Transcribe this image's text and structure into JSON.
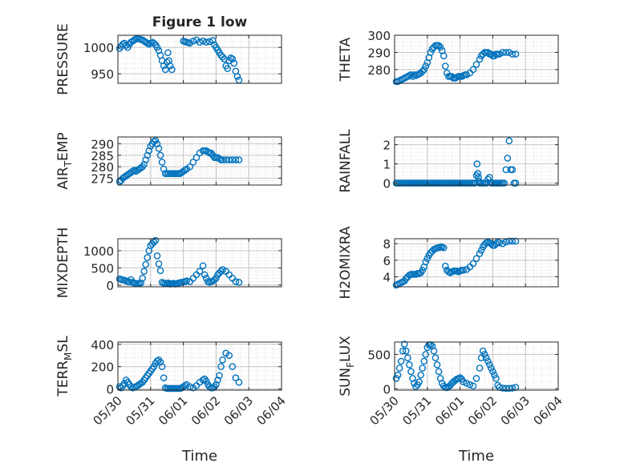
{
  "figure": {
    "title": "Figure 1 low",
    "xlabel": "Time",
    "x_ticks": [
      "05/30",
      "05/31",
      "06/01",
      "06/02",
      "06/03",
      "06/04"
    ],
    "marker": "o",
    "color": "#0072BD",
    "grid": true,
    "minor_grid": true
  },
  "chart_data": [
    {
      "type": "scatter",
      "ylabel": "PRESSURE",
      "ylim": [
        932,
        1023
      ],
      "yticks": [
        950,
        1000
      ],
      "xlim": [
        "05/30",
        "06/04"
      ],
      "x_day": [
        0.05,
        0.1,
        0.15,
        0.2,
        0.25,
        0.3,
        0.35,
        0.4,
        0.45,
        0.5,
        0.55,
        0.6,
        0.65,
        0.7,
        0.75,
        0.8,
        0.85,
        0.9,
        0.95,
        1.0,
        1.05,
        1.1,
        1.15,
        1.2,
        1.25,
        1.3,
        1.35,
        1.4,
        1.45,
        1.5,
        1.53,
        1.56,
        1.6,
        1.65,
        2.0,
        2.05,
        2.1,
        2.15,
        2.2,
        2.3,
        2.4,
        2.5,
        2.6,
        2.7,
        2.8,
        2.9,
        2.95,
        3.0,
        3.05,
        3.1,
        3.15,
        3.2,
        3.25,
        3.3,
        3.35,
        3.4,
        3.45,
        3.5,
        3.55,
        3.6,
        3.65,
        3.7
      ],
      "y": [
        998,
        1002,
        1006,
        1008,
        1004,
        1000,
        1006,
        1010,
        1012,
        1014,
        1016,
        1017,
        1016,
        1015,
        1014,
        1012,
        1010,
        1008,
        1006,
        1008,
        1010,
        1008,
        1005,
        1000,
        994,
        985,
        975,
        965,
        958,
        972,
        990,
        975,
        965,
        958,
        1012,
        1011,
        1010,
        1009,
        1008,
        1012,
        1014,
        1010,
        1012,
        1010,
        1011,
        1013,
        1005,
        1000,
        995,
        990,
        985,
        982,
        978,
        965,
        960,
        975,
        980,
        978,
        970,
        955,
        945,
        938
      ]
    },
    {
      "type": "scatter",
      "ylabel": "THETA",
      "ylim": [
        272,
        300
      ],
      "yticks": [
        280,
        290,
        300
      ],
      "xlim": [
        "05/30",
        "06/04"
      ],
      "x_day": [
        0.05,
        0.1,
        0.15,
        0.2,
        0.25,
        0.3,
        0.35,
        0.4,
        0.45,
        0.5,
        0.55,
        0.6,
        0.65,
        0.7,
        0.75,
        0.8,
        0.85,
        0.9,
        0.95,
        1.0,
        1.05,
        1.1,
        1.15,
        1.2,
        1.25,
        1.3,
        1.35,
        1.4,
        1.45,
        1.5,
        1.55,
        1.6,
        1.65,
        1.7,
        1.75,
        1.8,
        1.85,
        1.9,
        1.95,
        2.0,
        2.05,
        2.1,
        2.15,
        2.2,
        2.3,
        2.4,
        2.5,
        2.6,
        2.65,
        2.7,
        2.75,
        2.8,
        2.85,
        2.9,
        2.95,
        3.0,
        3.05,
        3.1,
        3.15,
        3.2,
        3.3,
        3.4,
        3.5,
        3.6,
        3.7
      ],
      "y": [
        273,
        273,
        273.5,
        274,
        274.5,
        275,
        275.5,
        276,
        276.5,
        277,
        276,
        277,
        276.5,
        277,
        277.5,
        278,
        279,
        280,
        282,
        284,
        287,
        290,
        292,
        293,
        294,
        294,
        294,
        293,
        291,
        288,
        282,
        278,
        276,
        276,
        276,
        275,
        275,
        275.5,
        276,
        276,
        276,
        276.5,
        277,
        277,
        278,
        280,
        283,
        286,
        288,
        289,
        290,
        290,
        290,
        289,
        289,
        288,
        288,
        289,
        289,
        289,
        290,
        290,
        290,
        289,
        289
      ]
    },
    {
      "type": "scatter",
      "ylabel": "AIR_TEMP",
      "ylim": [
        272,
        293
      ],
      "yticks": [
        275,
        280,
        285,
        290
      ],
      "xlim": [
        "05/30",
        "06/04"
      ],
      "x_day": [
        0.05,
        0.1,
        0.15,
        0.2,
        0.25,
        0.3,
        0.35,
        0.4,
        0.45,
        0.5,
        0.55,
        0.6,
        0.65,
        0.7,
        0.75,
        0.8,
        0.85,
        0.9,
        0.95,
        1.0,
        1.05,
        1.1,
        1.15,
        1.2,
        1.25,
        1.3,
        1.35,
        1.4,
        1.45,
        1.5,
        1.55,
        1.6,
        1.65,
        1.7,
        1.75,
        1.8,
        1.85,
        1.9,
        1.95,
        2.0,
        2.05,
        2.1,
        2.2,
        2.3,
        2.4,
        2.5,
        2.6,
        2.65,
        2.7,
        2.75,
        2.8,
        2.85,
        2.9,
        2.95,
        3.0,
        3.05,
        3.1,
        3.15,
        3.2,
        3.3,
        3.4,
        3.5,
        3.6,
        3.7
      ],
      "y": [
        273.5,
        274,
        275,
        275.5,
        276,
        276.5,
        277,
        277.5,
        278,
        278.5,
        278,
        278.5,
        279,
        279.5,
        280,
        281,
        283,
        285,
        287,
        289,
        290,
        291,
        291.5,
        290,
        288,
        285,
        282,
        279,
        277,
        277,
        277,
        277,
        277,
        277,
        277,
        277,
        277,
        277,
        277.5,
        278,
        278.5,
        279,
        280,
        282,
        284,
        286,
        287,
        287,
        287,
        286.5,
        286,
        286,
        285,
        284,
        284,
        284,
        283.5,
        283,
        283,
        283,
        283,
        283,
        283,
        283
      ]
    },
    {
      "type": "scatter",
      "ylabel": "RAINFALL",
      "ylim": [
        -0.1,
        2.4
      ],
      "yticks": [
        0,
        1,
        2
      ],
      "xlim": [
        "05/30",
        "06/04"
      ],
      "x_day": [
        0.05,
        0.1,
        0.15,
        0.2,
        0.25,
        0.3,
        0.35,
        0.4,
        0.45,
        0.5,
        0.55,
        0.6,
        0.65,
        0.7,
        0.75,
        0.8,
        0.85,
        0.9,
        0.95,
        1.0,
        1.05,
        1.1,
        1.15,
        1.2,
        1.25,
        1.3,
        1.35,
        1.4,
        1.45,
        1.5,
        1.55,
        1.6,
        1.65,
        1.7,
        1.75,
        1.8,
        1.85,
        1.9,
        1.95,
        2.0,
        2.05,
        2.1,
        2.15,
        2.2,
        2.25,
        2.3,
        2.35,
        2.4,
        2.45,
        2.5,
        2.52,
        2.54,
        2.56,
        2.58,
        2.6,
        2.65,
        2.7,
        2.75,
        2.8,
        2.85,
        2.9,
        2.95,
        3.0,
        3.05,
        3.1,
        3.15,
        3.2,
        3.25,
        3.3,
        3.35,
        3.4,
        3.45,
        3.5,
        3.55,
        3.6,
        3.65,
        3.7
      ],
      "y": [
        0,
        0,
        0,
        0,
        0,
        0,
        0,
        0,
        0,
        0,
        0,
        0,
        0,
        0,
        0,
        0,
        0,
        0,
        0,
        0,
        0,
        0,
        0,
        0,
        0,
        0,
        0,
        0,
        0,
        0,
        0,
        0,
        0,
        0,
        0,
        0,
        0,
        0,
        0,
        0,
        0,
        0,
        0,
        0,
        0,
        0,
        0,
        0,
        0,
        0.4,
        1.0,
        0.5,
        0.3,
        0.1,
        0,
        0,
        0,
        0,
        0,
        0.2,
        0.3,
        0,
        0,
        0,
        0,
        0,
        0,
        0,
        0,
        0,
        0.7,
        1.3,
        2.2,
        0.7,
        0.7,
        0,
        0
      ]
    },
    {
      "type": "scatter",
      "ylabel": "MIXDEPTH",
      "ylim": [
        -50,
        1350
      ],
      "yticks": [
        0,
        500,
        1000
      ],
      "xlim": [
        "05/30",
        "06/04"
      ],
      "x_day": [
        0.05,
        0.1,
        0.15,
        0.2,
        0.25,
        0.3,
        0.35,
        0.4,
        0.45,
        0.5,
        0.55,
        0.6,
        0.65,
        0.7,
        0.75,
        0.8,
        0.85,
        0.9,
        0.95,
        1.0,
        1.05,
        1.1,
        1.15,
        1.2,
        1.25,
        1.3,
        1.35,
        1.4,
        1.45,
        1.5,
        1.55,
        1.6,
        1.65,
        1.7,
        1.75,
        1.8,
        1.85,
        1.9,
        1.95,
        2.0,
        2.05,
        2.1,
        2.2,
        2.3,
        2.4,
        2.5,
        2.6,
        2.65,
        2.7,
        2.75,
        2.8,
        2.85,
        2.9,
        2.95,
        3.0,
        3.05,
        3.1,
        3.15,
        3.2,
        3.3,
        3.4,
        3.5,
        3.6,
        3.7
      ],
      "y": [
        180,
        160,
        150,
        140,
        120,
        100,
        90,
        160,
        80,
        60,
        50,
        40,
        50,
        60,
        200,
        400,
        600,
        800,
        1000,
        1150,
        1200,
        1250,
        1300,
        850,
        620,
        420,
        80,
        60,
        50,
        50,
        60,
        30,
        40,
        50,
        30,
        40,
        60,
        70,
        80,
        90,
        100,
        120,
        100,
        200,
        300,
        400,
        560,
        300,
        200,
        100,
        80,
        100,
        120,
        150,
        200,
        300,
        350,
        400,
        450,
        400,
        300,
        200,
        100,
        80
      ]
    },
    {
      "type": "scatter",
      "ylabel": "H2OMIXRA",
      "ylim": [
        2.8,
        8.6
      ],
      "yticks": [
        4,
        6,
        8
      ],
      "xlim": [
        "05/30",
        "06/04"
      ],
      "x_day": [
        0.05,
        0.1,
        0.15,
        0.2,
        0.25,
        0.3,
        0.35,
        0.4,
        0.45,
        0.5,
        0.55,
        0.6,
        0.65,
        0.7,
        0.75,
        0.8,
        0.85,
        0.9,
        0.95,
        1.0,
        1.05,
        1.1,
        1.15,
        1.2,
        1.25,
        1.3,
        1.35,
        1.4,
        1.45,
        1.5,
        1.55,
        1.6,
        1.65,
        1.7,
        1.75,
        1.8,
        1.85,
        1.9,
        1.95,
        2.0,
        2.05,
        2.1,
        2.2,
        2.3,
        2.4,
        2.5,
        2.6,
        2.65,
        2.7,
        2.75,
        2.8,
        2.85,
        2.9,
        2.95,
        3.0,
        3.05,
        3.1,
        3.15,
        3.2,
        3.3,
        3.4,
        3.5,
        3.6,
        3.7
      ],
      "y": [
        3.0,
        3.1,
        3.2,
        3.3,
        3.4,
        3.5,
        3.8,
        4.0,
        4.2,
        4.3,
        4.3,
        4.3,
        4.3,
        4.4,
        4.4,
        4.5,
        4.8,
        5.2,
        5.8,
        6.2,
        6.6,
        6.9,
        7.1,
        7.3,
        7.4,
        7.5,
        7.5,
        7.6,
        7.6,
        7.5,
        5.3,
        4.8,
        4.6,
        4.5,
        4.6,
        4.7,
        4.7,
        4.7,
        4.6,
        4.7,
        4.8,
        4.8,
        4.9,
        5.2,
        5.6,
        6.2,
        6.8,
        7.2,
        7.6,
        7.9,
        8.1,
        8.2,
        8.1,
        8.0,
        7.8,
        7.8,
        8.0,
        8.2,
        8.1,
        8.0,
        8.2,
        8.3,
        8.3,
        8.3
      ]
    },
    {
      "type": "scatter",
      "ylabel": "TERR_MSL",
      "ylim": [
        -10,
        420
      ],
      "yticks": [
        0,
        200,
        400
      ],
      "xlim": [
        "05/30",
        "06/04"
      ],
      "x_day": [
        0.05,
        0.1,
        0.15,
        0.2,
        0.25,
        0.3,
        0.35,
        0.4,
        0.45,
        0.5,
        0.55,
        0.6,
        0.65,
        0.7,
        0.75,
        0.8,
        0.85,
        0.9,
        0.95,
        1.0,
        1.05,
        1.1,
        1.15,
        1.2,
        1.25,
        1.3,
        1.35,
        1.4,
        1.45,
        1.5,
        1.55,
        1.6,
        1.65,
        1.7,
        1.75,
        1.8,
        1.85,
        1.9,
        1.95,
        2.0,
        2.05,
        2.1,
        2.2,
        2.3,
        2.4,
        2.5,
        2.6,
        2.65,
        2.7,
        2.75,
        2.8,
        2.85,
        2.9,
        2.95,
        3.0,
        3.05,
        3.1,
        3.15,
        3.2,
        3.3,
        3.4,
        3.5,
        3.6,
        3.7
      ],
      "y": [
        20,
        10,
        30,
        50,
        80,
        60,
        40,
        20,
        10,
        15,
        20,
        30,
        40,
        50,
        60,
        80,
        100,
        120,
        140,
        160,
        180,
        200,
        230,
        250,
        260,
        240,
        200,
        100,
        10,
        5,
        5,
        5,
        5,
        5,
        5,
        5,
        5,
        5,
        10,
        20,
        30,
        40,
        20,
        10,
        30,
        60,
        80,
        90,
        70,
        40,
        20,
        10,
        10,
        20,
        40,
        80,
        120,
        200,
        260,
        320,
        300,
        200,
        100,
        60
      ]
    },
    {
      "type": "scatter",
      "ylabel": "SUN_FLUX",
      "ylim": [
        -20,
        680
      ],
      "yticks": [
        0,
        500
      ],
      "xlim": [
        "05/30",
        "06/04"
      ],
      "x_day": [
        0.05,
        0.1,
        0.15,
        0.2,
        0.25,
        0.3,
        0.35,
        0.4,
        0.45,
        0.5,
        0.55,
        0.6,
        0.65,
        0.7,
        0.75,
        0.8,
        0.85,
        0.9,
        0.95,
        1.0,
        1.05,
        1.1,
        1.15,
        1.2,
        1.25,
        1.3,
        1.35,
        1.4,
        1.45,
        1.5,
        1.55,
        1.6,
        1.65,
        1.7,
        1.75,
        1.8,
        1.85,
        1.9,
        1.95,
        2.0,
        2.05,
        2.1,
        2.2,
        2.3,
        2.4,
        2.5,
        2.6,
        2.65,
        2.7,
        2.75,
        2.8,
        2.85,
        2.9,
        2.95,
        3.0,
        3.05,
        3.1,
        3.15,
        3.2,
        3.3,
        3.4,
        3.5,
        3.6,
        3.7
      ],
      "y": [
        150,
        200,
        300,
        400,
        550,
        650,
        550,
        450,
        350,
        250,
        150,
        80,
        30,
        60,
        100,
        200,
        300,
        400,
        500,
        600,
        640,
        640,
        620,
        550,
        450,
        350,
        250,
        150,
        80,
        40,
        20,
        15,
        30,
        50,
        80,
        100,
        120,
        140,
        150,
        160,
        140,
        100,
        80,
        60,
        40,
        150,
        300,
        450,
        550,
        500,
        450,
        400,
        350,
        300,
        250,
        200,
        150,
        50,
        20,
        10,
        5,
        5,
        10,
        20
      ]
    }
  ]
}
